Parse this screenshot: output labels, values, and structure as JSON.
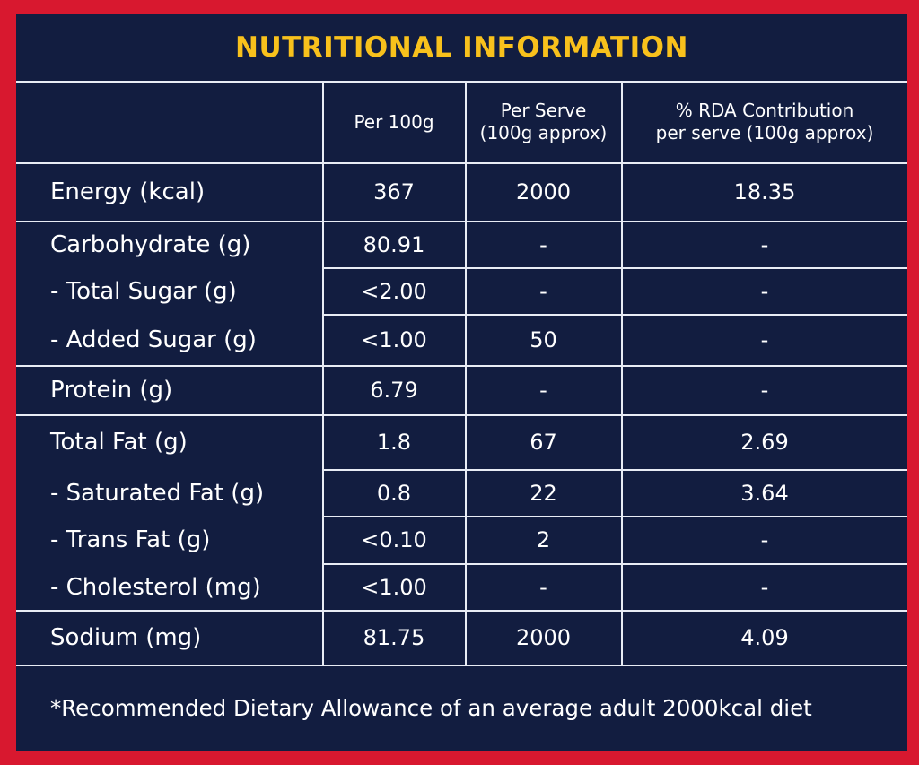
{
  "title": "NUTRITIONAL INFORMATION",
  "columns": [
    "Per 100g",
    "Per Serve\n(100g approx)",
    "% RDA Contribution\nper serve (100g approx)"
  ],
  "rows": [
    {
      "label": "Energy (kcal)",
      "per100": "367",
      "perServe": "2000",
      "rda": "18.35"
    },
    {
      "label": "Carbohydrate (g)",
      "per100": "80.91",
      "perServe": "-",
      "rda": "-"
    },
    {
      "label": "- Total Sugar (g)",
      "per100": "<2.00",
      "perServe": "-",
      "rda": "-"
    },
    {
      "label": "- Added Sugar (g)",
      "per100": "<1.00",
      "perServe": "50",
      "rda": "-"
    },
    {
      "label": "Protein (g)",
      "per100": "6.79",
      "perServe": "-",
      "rda": "-"
    },
    {
      "label": "Total Fat (g)",
      "per100": "1.8",
      "perServe": "67",
      "rda": "2.69"
    },
    {
      "label": "- Saturated Fat (g)",
      "per100": "0.8",
      "perServe": "22",
      "rda": "3.64"
    },
    {
      "label": "- Trans Fat (g)",
      "per100": "<0.10",
      "perServe": "2",
      "rda": "-"
    },
    {
      "label": "- Cholesterol (mg)",
      "per100": "<1.00",
      "perServe": "-",
      "rda": "-"
    },
    {
      "label": "Sodium (mg)",
      "per100": "81.75",
      "perServe": "2000",
      "rda": "4.09"
    }
  ],
  "footnote": "*Recommended Dietary Allowance of an average adult 2000kcal diet"
}
